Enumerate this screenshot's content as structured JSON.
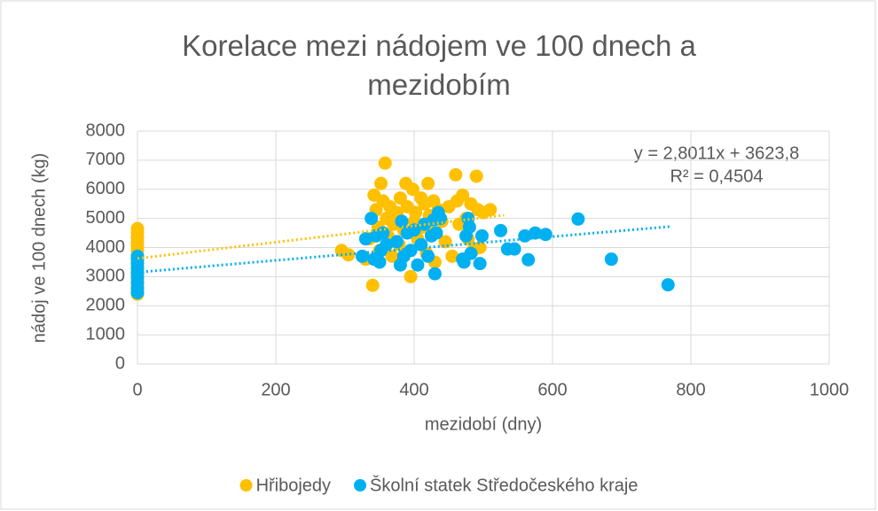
{
  "chart_data": {
    "type": "scatter",
    "title": "Korelace mezi nádojem ve 100 dnech a mezidobím",
    "x_label": "mezidobí (dny)",
    "y_label": "nádoj ve 100 dnech (kg)",
    "xlim": [
      0,
      1000
    ],
    "xticks": [
      0,
      200,
      400,
      600,
      800,
      1000
    ],
    "ylim": [
      0,
      8000
    ],
    "yticks": [
      0,
      1000,
      2000,
      3000,
      4000,
      5000,
      6000,
      7000,
      8000
    ],
    "grid": true,
    "legend": "bottom",
    "annotations": [
      "y = 2,8011x + 3623,8",
      "R² = 0,4504"
    ],
    "series": [
      {
        "name": "Hřibojedy",
        "color": "#ffc000",
        "trendline": {
          "slope": 2.8011,
          "intercept": 3623.8,
          "xlim": [
            0,
            530
          ]
        },
        "x": [
          0,
          0,
          0,
          0,
          0,
          0,
          0,
          0,
          0,
          0,
          0,
          0,
          0,
          0,
          295,
          305,
          330,
          335,
          340,
          342,
          345,
          348,
          350,
          352,
          355,
          358,
          360,
          362,
          365,
          368,
          370,
          375,
          378,
          380,
          385,
          388,
          390,
          395,
          398,
          400,
          402,
          405,
          410,
          412,
          415,
          418,
          420,
          422,
          425,
          428,
          430,
          435,
          440,
          445,
          450,
          455,
          460,
          462,
          465,
          470,
          475,
          478,
          482,
          485,
          490,
          492,
          495,
          500,
          510
        ],
        "y": [
          2400,
          2500,
          2700,
          2900,
          3100,
          3300,
          3500,
          3700,
          3900,
          4050,
          4200,
          4350,
          4500,
          4650,
          3900,
          3750,
          3600,
          4300,
          2700,
          5800,
          5300,
          4700,
          3900,
          6200,
          5600,
          6900,
          5000,
          4400,
          5400,
          3700,
          4800,
          5200,
          4100,
          5700,
          4600,
          6200,
          5400,
          3000,
          6000,
          4900,
          5200,
          4300,
          5700,
          4700,
          5500,
          3800,
          6200,
          5100,
          4500,
          5600,
          3500,
          5300,
          4900,
          4200,
          5400,
          3700,
          6500,
          5600,
          4800,
          5800,
          5000,
          4300,
          5500,
          3900,
          6450,
          5300,
          4000,
          5200,
          5300
        ]
      },
      {
        "name": "Školní statek Středočeského kraje",
        "color": "#00b0f0",
        "trendline": {
          "slope": 2.04,
          "intercept": 3150,
          "xlim": [
            0,
            770
          ]
        },
        "x": [
          0,
          0,
          0,
          0,
          0,
          0,
          0,
          0,
          0,
          325,
          330,
          338,
          342,
          345,
          350,
          352,
          355,
          360,
          375,
          380,
          382,
          385,
          390,
          395,
          400,
          405,
          410,
          415,
          420,
          425,
          428,
          430,
          432,
          435,
          438,
          470,
          472,
          475,
          478,
          480,
          482,
          495,
          498,
          525,
          535,
          545,
          560,
          565,
          575,
          590,
          637,
          685,
          767
        ],
        "y": [
          2450,
          2600,
          2800,
          3000,
          3150,
          3300,
          3450,
          3600,
          3700,
          3700,
          4300,
          5000,
          3600,
          4400,
          3500,
          3900,
          4500,
          4100,
          4200,
          3400,
          4900,
          3700,
          4500,
          3900,
          4600,
          3400,
          4100,
          4800,
          3700,
          4400,
          4950,
          3100,
          4500,
          5200,
          5000,
          3600,
          3500,
          4400,
          5000,
          4700,
          3800,
          3450,
          4400,
          4580,
          3950,
          3950,
          4400,
          3580,
          4500,
          4450,
          4980,
          3600,
          2720
        ]
      }
    ]
  }
}
